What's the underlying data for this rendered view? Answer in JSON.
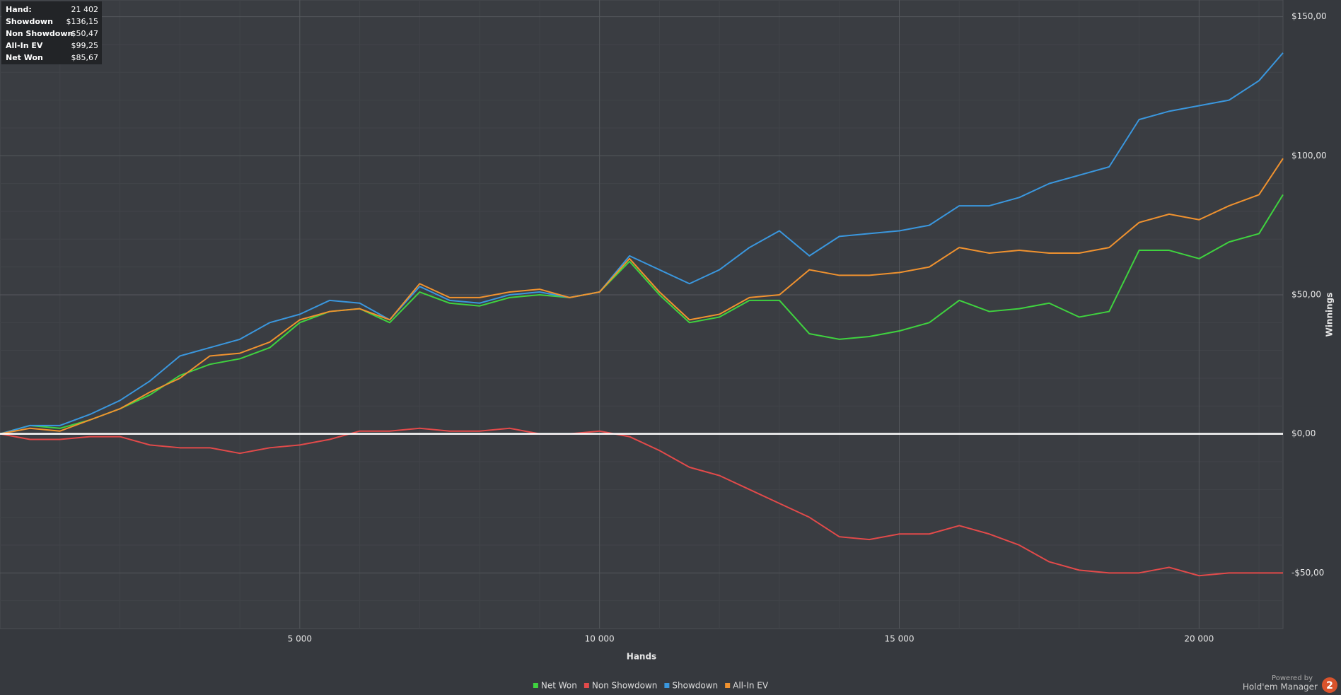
{
  "stats": {
    "rows": [
      [
        "Hand:",
        "21 402"
      ],
      [
        "Showdown",
        "$136,15"
      ],
      [
        "Non Showdown",
        "-$50,47"
      ],
      [
        "All-In EV",
        "$99,25"
      ],
      [
        "Net Won",
        "$85,67"
      ]
    ]
  },
  "chart_data": {
    "type": "line",
    "x_label": "Hands",
    "y_label": "Winnings",
    "x": [
      0,
      500,
      1000,
      1500,
      2000,
      2500,
      3000,
      3500,
      4000,
      4500,
      5000,
      5500,
      6000,
      6500,
      7000,
      7500,
      8000,
      8500,
      9000,
      9500,
      10000,
      10500,
      11000,
      11500,
      12000,
      12500,
      13000,
      13500,
      14000,
      14500,
      15000,
      15500,
      16000,
      16500,
      17000,
      17500,
      18000,
      18500,
      19000,
      19500,
      20000,
      20500,
      21000,
      21400
    ],
    "series": [
      {
        "name": "Net Won",
        "color": "#3fd33f",
        "values": [
          0,
          3,
          2,
          5,
          9,
          14,
          21,
          25,
          27,
          31,
          40,
          44,
          45,
          40,
          51,
          47,
          46,
          49,
          50,
          49,
          51,
          62,
          50,
          40,
          42,
          48,
          48,
          36,
          34,
          35,
          37,
          40,
          48,
          44,
          45,
          47,
          42,
          44,
          66,
          66,
          63,
          69,
          72,
          86
        ]
      },
      {
        "name": "Non Showdown",
        "color": "#e24a4a",
        "values": [
          0,
          -2,
          -2,
          -1,
          -1,
          -4,
          -5,
          -5,
          -7,
          -5,
          -4,
          -2,
          1,
          1,
          2,
          1,
          1,
          2,
          0,
          0,
          1,
          -1,
          -6,
          -12,
          -15,
          -20,
          -25,
          -30,
          -37,
          -38,
          -36,
          -36,
          -33,
          -36,
          -40,
          -46,
          -49,
          -50,
          -50,
          -48,
          -51,
          -50,
          -50,
          -50
        ]
      },
      {
        "name": "Showdown",
        "color": "#3a97de",
        "values": [
          0,
          3,
          3,
          7,
          12,
          19,
          28,
          31,
          34,
          40,
          43,
          48,
          47,
          41,
          53,
          48,
          47,
          50,
          51,
          49,
          51,
          64,
          59,
          54,
          59,
          67,
          73,
          64,
          71,
          72,
          73,
          75,
          82,
          82,
          85,
          90,
          93,
          96,
          113,
          116,
          118,
          120,
          127,
          137
        ]
      },
      {
        "name": "All-In EV",
        "color": "#f0922f",
        "values": [
          0,
          2,
          1,
          5,
          9,
          15,
          20,
          28,
          29,
          33,
          41,
          44,
          45,
          41,
          54,
          49,
          49,
          51,
          52,
          49,
          51,
          63,
          51,
          41,
          43,
          49,
          50,
          59,
          57,
          57,
          58,
          60,
          67,
          65,
          66,
          65,
          65,
          67,
          76,
          79,
          77,
          82,
          86,
          99
        ]
      }
    ],
    "xlim": [
      0,
      21400
    ],
    "ylim": [
      -70,
      156
    ],
    "xticks": [
      {
        "value": 5000,
        "label": "5 000"
      },
      {
        "value": 10000,
        "label": "10 000"
      },
      {
        "value": 15000,
        "label": "15 000"
      },
      {
        "value": 20000,
        "label": "20 000"
      }
    ],
    "yticks": [
      {
        "value": -50,
        "label": "-$50,00"
      },
      {
        "value": 0,
        "label": "$0,00"
      },
      {
        "value": 50,
        "label": "$50,00"
      },
      {
        "value": 100,
        "label": "$100,00"
      },
      {
        "value": 150,
        "label": "$150,00"
      }
    ],
    "x_minor_ticks": [
      1000,
      2000,
      3000,
      4000,
      6000,
      7000,
      8000,
      9000,
      11000,
      12000,
      13000,
      14000,
      16000,
      17000,
      18000,
      19000,
      21000
    ],
    "y_minor_ticks": [
      -60,
      -40,
      -30,
      -20,
      -10,
      10,
      20,
      30,
      40,
      60,
      70,
      80,
      90,
      110,
      120,
      130,
      140
    ],
    "grid": true
  },
  "footer": {
    "powered_by": "Powered by",
    "brand": "Hold'em Manager",
    "logo_text": "2"
  }
}
